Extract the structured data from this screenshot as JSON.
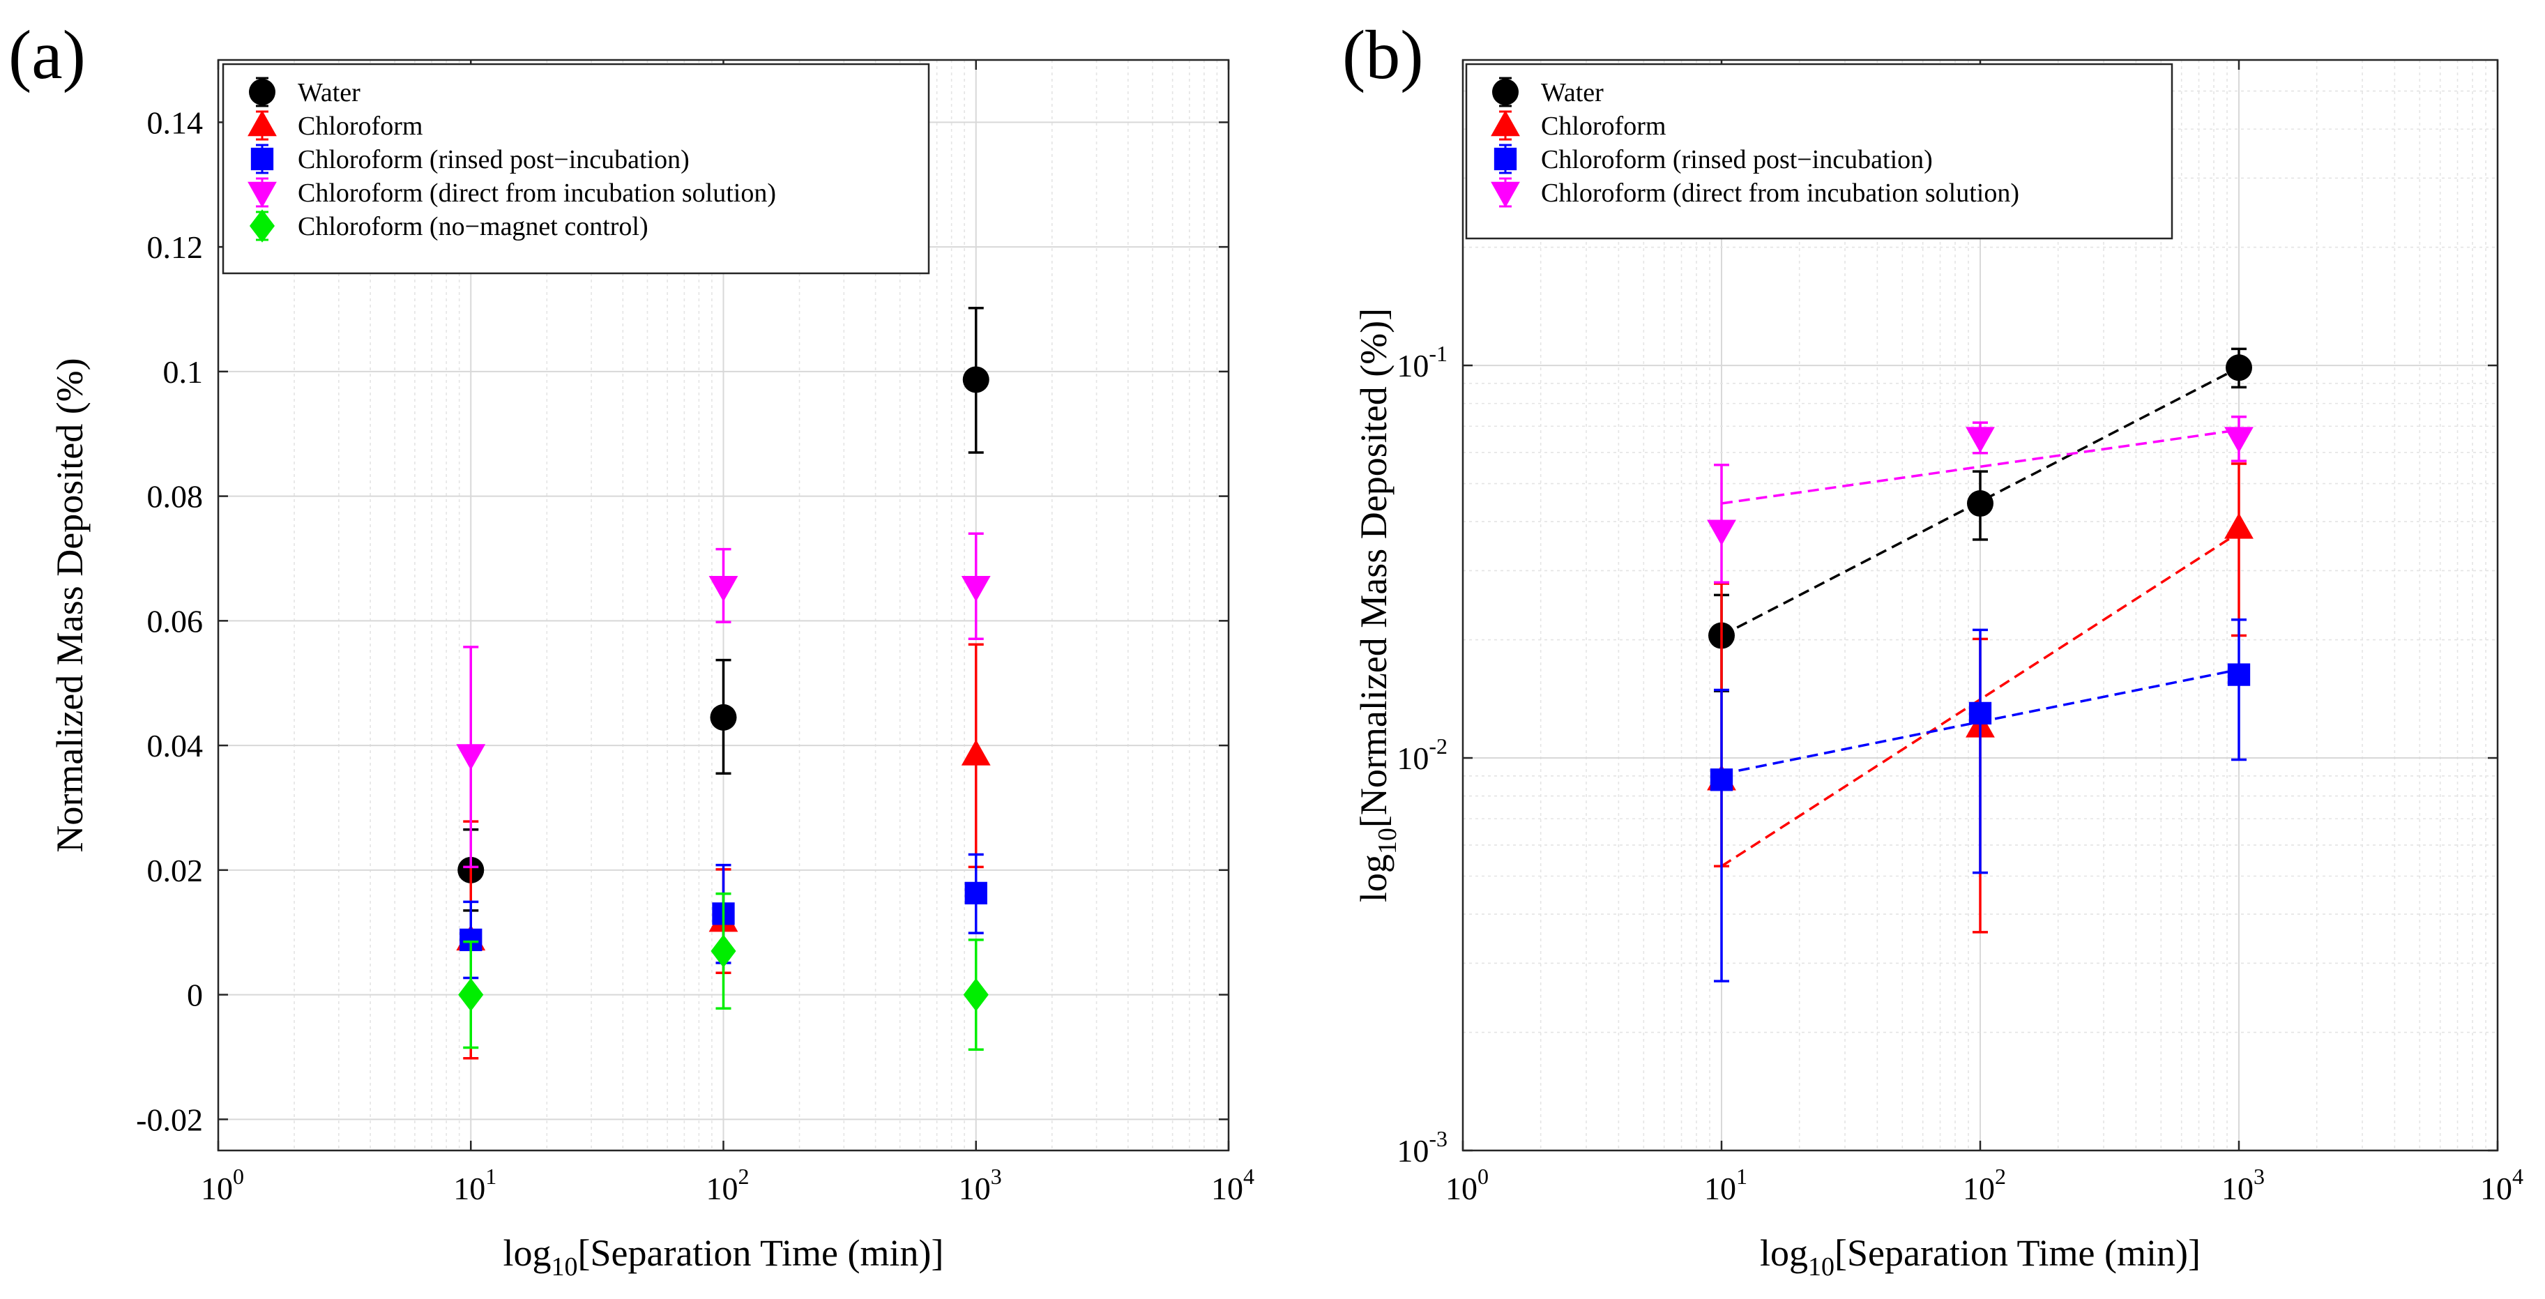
{
  "chart_data": [
    {
      "id": "a",
      "panel_label": "(a)",
      "type": "scatter",
      "xscale": "log",
      "yscale": "linear",
      "xlabel": {
        "prefix": "log",
        "sub": "10",
        "rest": "[Separation Time (min)]"
      },
      "ylabel": {
        "prefix": "",
        "sub": "",
        "rest": "Normalized Mass Deposited (%)"
      },
      "xlim": [
        1,
        10000
      ],
      "ylim": [
        -0.025,
        0.15
      ],
      "x_ticks": [
        {
          "value": 1,
          "base": "10",
          "exp": "0"
        },
        {
          "value": 10,
          "base": "10",
          "exp": "1"
        },
        {
          "value": 100,
          "base": "10",
          "exp": "2"
        },
        {
          "value": 1000,
          "base": "10",
          "exp": "3"
        },
        {
          "value": 10000,
          "base": "10",
          "exp": "4"
        }
      ],
      "y_ticks": [
        {
          "value": -0.02,
          "label": "-0.02"
        },
        {
          "value": 0,
          "label": "0"
        },
        {
          "value": 0.02,
          "label": "0.02"
        },
        {
          "value": 0.04,
          "label": "0.04"
        },
        {
          "value": 0.06,
          "label": "0.06"
        },
        {
          "value": 0.08,
          "label": "0.08"
        },
        {
          "value": 0.1,
          "label": "0.1"
        },
        {
          "value": 0.12,
          "label": "0.12"
        },
        {
          "value": 0.14,
          "label": "0.14"
        }
      ],
      "grid": true,
      "legend_position": "top-left",
      "series": [
        {
          "name": "Water",
          "color": "#000000",
          "marker": "circle",
          "x": [
            10,
            100,
            1000
          ],
          "y": [
            0.02,
            0.0445,
            0.0987
          ],
          "err_low": [
            0.0135,
            0.0355,
            0.087
          ],
          "err_high": [
            0.0265,
            0.0537,
            0.1102
          ]
        },
        {
          "name": "Chloroform",
          "color": "#ff0000",
          "marker": "triangle-up",
          "x": [
            10,
            100,
            1000
          ],
          "y": [
            0.0088,
            0.0118,
            0.0385
          ],
          "err_low": [
            -0.0102,
            0.0035,
            0.0205
          ],
          "err_high": [
            0.0278,
            0.0201,
            0.0562
          ]
        },
        {
          "name": "Chloroform (rinsed post−incubation)",
          "color": "#0000ff",
          "marker": "square",
          "x": [
            10,
            100,
            1000
          ],
          "y": [
            0.0088,
            0.013,
            0.0163
          ],
          "err_low": [
            0.0027,
            0.0051,
            0.0099
          ],
          "err_high": [
            0.0149,
            0.0208,
            0.0225
          ]
        },
        {
          "name": "Chloroform (direct from incubation solution)",
          "color": "#ff00ff",
          "marker": "triangle-down",
          "x": [
            10,
            100,
            1000
          ],
          "y": [
            0.0385,
            0.0655,
            0.0655
          ],
          "err_low": [
            0.0205,
            0.0598,
            0.0571
          ],
          "err_high": [
            0.0558,
            0.0715,
            0.074
          ]
        },
        {
          "name": "Chloroform (no−magnet control)",
          "color": "#00ee00",
          "marker": "diamond",
          "x": [
            10,
            100,
            1000
          ],
          "y": [
            0.0,
            0.007,
            0.0
          ],
          "err_low": [
            -0.0085,
            -0.0022,
            -0.0088
          ],
          "err_high": [
            0.0085,
            0.0162,
            0.0088
          ]
        }
      ]
    },
    {
      "id": "b",
      "panel_label": "(b)",
      "type": "scatter",
      "xscale": "log",
      "yscale": "log",
      "xlabel": {
        "prefix": "log",
        "sub": "10",
        "rest": "[Separation Time (min)]"
      },
      "ylabel": {
        "prefix": "log",
        "sub": "10",
        "rest": "[Normalized Mass Deposited (%)]"
      },
      "xlim": [
        1,
        10000
      ],
      "ylim": [
        0.001,
        0.6
      ],
      "x_ticks": [
        {
          "value": 1,
          "base": "10",
          "exp": "0"
        },
        {
          "value": 10,
          "base": "10",
          "exp": "1"
        },
        {
          "value": 100,
          "base": "10",
          "exp": "2"
        },
        {
          "value": 1000,
          "base": "10",
          "exp": "3"
        },
        {
          "value": 10000,
          "base": "10",
          "exp": "4"
        }
      ],
      "y_ticks": [
        {
          "value": 0.001,
          "base": "10",
          "exp": "-3"
        },
        {
          "value": 0.01,
          "base": "10",
          "exp": "-2"
        },
        {
          "value": 0.1,
          "base": "10",
          "exp": "-1"
        }
      ],
      "grid": true,
      "legend_position": "top-left",
      "series": [
        {
          "name": "Water",
          "color": "#000000",
          "marker": "circle",
          "x": [
            10,
            100,
            1000
          ],
          "y": [
            0.0205,
            0.0445,
            0.0987
          ],
          "err_low": [
            0.0148,
            0.036,
            0.088
          ],
          "err_high": [
            0.026,
            0.0537,
            0.1102
          ],
          "fit": [
            0.0205,
            0.0987
          ]
        },
        {
          "name": "Chloroform",
          "color": "#ff0000",
          "marker": "triangle-up",
          "x": [
            10,
            100,
            1000
          ],
          "y": [
            0.0088,
            0.012,
            0.0385
          ],
          "err_low": [
            0.0053,
            0.0036,
            0.0205
          ],
          "err_high": [
            0.0278,
            0.0201,
            0.0562
          ],
          "fit": [
            0.0053,
            0.0375
          ]
        },
        {
          "name": "Chloroform (rinsed post−incubation)",
          "color": "#0000ff",
          "marker": "square",
          "x": [
            10,
            100,
            1000
          ],
          "y": [
            0.0088,
            0.013,
            0.0163
          ],
          "err_low": [
            0.0027,
            0.0051,
            0.0099
          ],
          "err_high": [
            0.0149,
            0.0212,
            0.0225
          ],
          "fit": [
            0.0091,
            0.0168
          ]
        },
        {
          "name": "Chloroform (direct from incubation solution)",
          "color": "#ff00ff",
          "marker": "triangle-down",
          "x": [
            10,
            100,
            1000
          ],
          "y": [
            0.038,
            0.0655,
            0.0655
          ],
          "err_low": [
            0.028,
            0.0598,
            0.0571
          ],
          "err_high": [
            0.0558,
            0.0715,
            0.074
          ],
          "fit": [
            0.0445,
            0.0685
          ]
        }
      ]
    }
  ]
}
